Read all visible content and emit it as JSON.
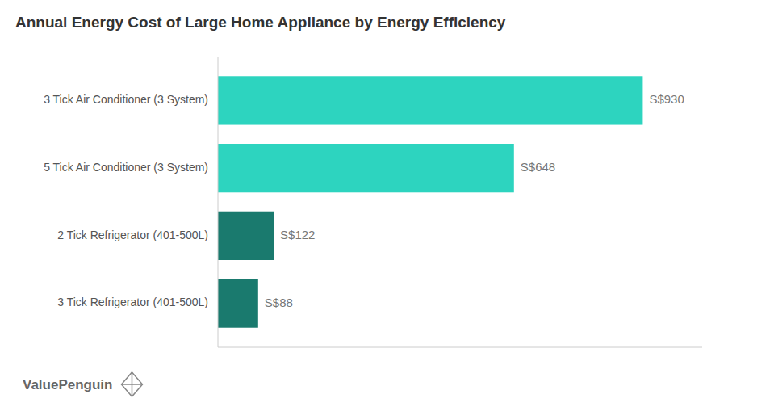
{
  "chart_data": {
    "type": "bar",
    "orientation": "horizontal",
    "title": "Annual Energy Cost of Large Home Appliance by Energy Efficiency",
    "categories": [
      "3 Tick Air Conditioner (3 System)",
      "5 Tick Air Conditioner (3 System)",
      "2 Tick Refrigerator (401-500L)",
      "3 Tick Refrigerator (401-500L)"
    ],
    "values": [
      930,
      648,
      122,
      88
    ],
    "value_labels": [
      "S$930",
      "S$648",
      "S$122",
      "S$88"
    ],
    "colors": [
      "#2dd4bf",
      "#2dd4bf",
      "#1a7a6e",
      "#1a7a6e"
    ],
    "xlim": [
      0,
      1060
    ],
    "data_labels": true,
    "tick_labels": "y",
    "grid": false,
    "annotations": [
      "ValuePenguin"
    ]
  }
}
